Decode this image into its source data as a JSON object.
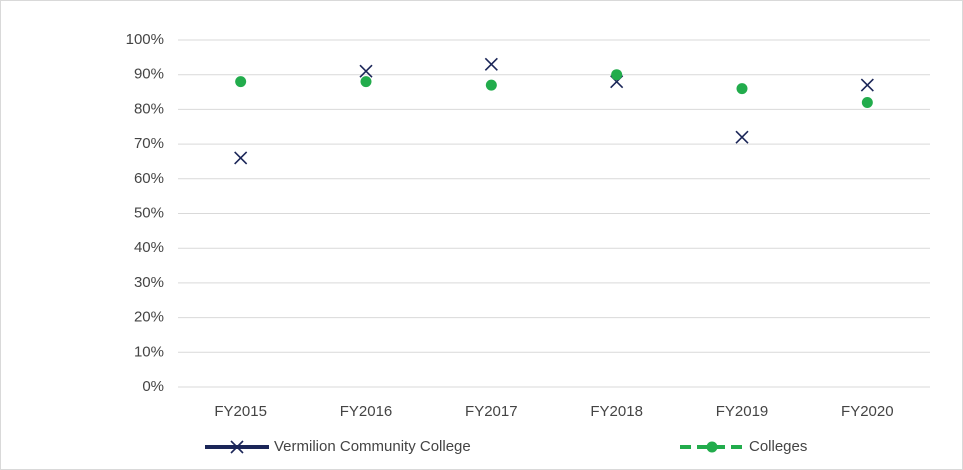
{
  "chart_data": {
    "type": "line",
    "categories": [
      "FY2015",
      "FY2016",
      "FY2017",
      "FY2018",
      "FY2019",
      "FY2020"
    ],
    "series": [
      {
        "name": "Vermilion Community College",
        "color": "#1b2658",
        "values": [
          66,
          91,
          93,
          88,
          72,
          87
        ]
      },
      {
        "name": "Colleges",
        "color": "#22ac4c",
        "values": [
          88,
          88,
          87,
          90,
          86,
          82
        ]
      }
    ],
    "ylim": [
      0,
      100
    ],
    "yticks": [
      {
        "value": 0,
        "label": "0%"
      },
      {
        "value": 10,
        "label": "10%"
      },
      {
        "value": 20,
        "label": "20%"
      },
      {
        "value": 30,
        "label": "30%"
      },
      {
        "value": 40,
        "label": "40%"
      },
      {
        "value": 50,
        "label": "50%"
      },
      {
        "value": 60,
        "label": "60%"
      },
      {
        "value": 70,
        "label": "70%"
      },
      {
        "value": 80,
        "label": "80%"
      },
      {
        "value": 90,
        "label": "90%"
      },
      {
        "value": 100,
        "label": "100%"
      }
    ],
    "grid": true,
    "legend": "bottom"
  }
}
